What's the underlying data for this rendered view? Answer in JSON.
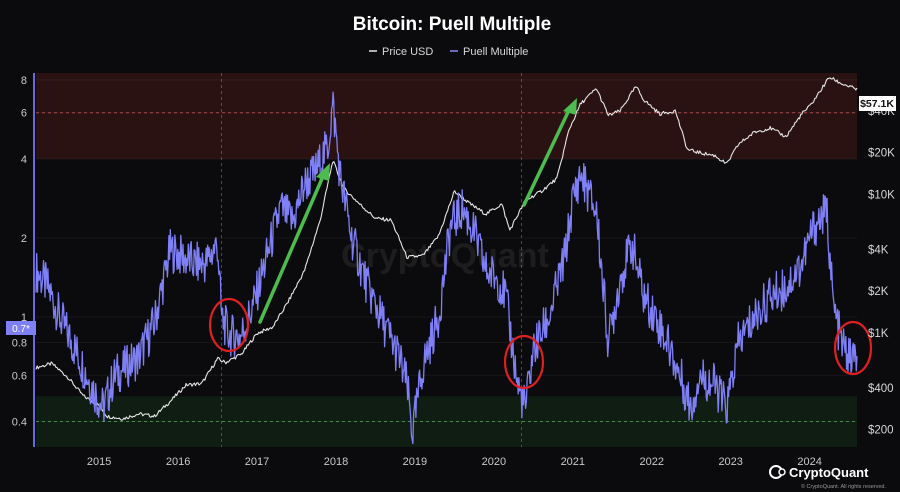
{
  "chart_data": {
    "type": "line",
    "title": "Bitcoin: Puell Multiple",
    "legend": [
      "Price USD",
      "Puell Multiple"
    ],
    "legend_placement": "top-center",
    "x_tick_labels": [
      "2015",
      "2016",
      "2017",
      "2018",
      "2019",
      "2020",
      "2021",
      "2022",
      "2023",
      "2024"
    ],
    "xlim": [
      2014.2,
      2024.6
    ],
    "left_axis": {
      "scale": "log",
      "ticks": [
        "8",
        "6",
        "4",
        "2",
        "1",
        "0.8",
        "0.6",
        "0.4"
      ],
      "tick_values": [
        8,
        6,
        4,
        2,
        1,
        0.8,
        0.6,
        0.4
      ],
      "ylim": [
        0.32,
        8.5
      ]
    },
    "right_axis": {
      "scale": "log",
      "ticks": [
        "$40K",
        "$20K",
        "$10K",
        "$4K",
        "$2K",
        "$1K",
        "$400",
        "$200"
      ],
      "tick_values": [
        40000,
        20000,
        10000,
        4000,
        2000,
        1000,
        400,
        200
      ],
      "ylim": [
        150,
        75000
      ]
    },
    "current_badges": {
      "puell": "0.7*",
      "price": "$57.1K"
    },
    "bands": {
      "red_zone": [
        4,
        8.5
      ],
      "green_zone": [
        0.32,
        0.5
      ],
      "dashed_lines": [
        6,
        0.4
      ]
    },
    "series": [
      {
        "name": "Price USD",
        "color": "#e6e6e6",
        "x": [
          2014.2,
          2014.4,
          2014.6,
          2014.8,
          2015.0,
          2015.1,
          2015.3,
          2015.5,
          2015.7,
          2015.9,
          2016.1,
          2016.3,
          2016.5,
          2016.6,
          2016.8,
          2017.0,
          2017.2,
          2017.4,
          2017.6,
          2017.8,
          2017.96,
          2018.1,
          2018.3,
          2018.5,
          2018.7,
          2018.9,
          2019.1,
          2019.3,
          2019.5,
          2019.7,
          2019.9,
          2020.1,
          2020.2,
          2020.4,
          2020.6,
          2020.8,
          2020.95,
          2021.1,
          2021.3,
          2021.45,
          2021.6,
          2021.8,
          2021.9,
          2022.1,
          2022.3,
          2022.45,
          2022.6,
          2022.8,
          2022.95,
          2023.1,
          2023.3,
          2023.5,
          2023.7,
          2023.9,
          2024.0,
          2024.1,
          2024.25,
          2024.4,
          2024.6
        ],
        "values": [
          560,
          600,
          480,
          350,
          300,
          250,
          240,
          260,
          250,
          320,
          420,
          430,
          650,
          610,
          700,
          990,
          1100,
          1700,
          2800,
          6500,
          17500,
          11000,
          8500,
          6700,
          6500,
          3500,
          3600,
          5000,
          10500,
          8500,
          7200,
          8500,
          5500,
          9000,
          10500,
          13000,
          29000,
          45000,
          58000,
          37000,
          40000,
          60000,
          48000,
          38000,
          40000,
          21000,
          20000,
          19000,
          16500,
          23000,
          28000,
          30000,
          26000,
          38000,
          43000,
          52000,
          70000,
          63000,
          57100
        ]
      },
      {
        "name": "Puell Multiple",
        "color": "#7f7ff6",
        "x": [
          2014.2,
          2014.35,
          2014.5,
          2014.7,
          2014.9,
          2015.05,
          2015.2,
          2015.35,
          2015.5,
          2015.7,
          2015.9,
          2016.05,
          2016.2,
          2016.35,
          2016.5,
          2016.55,
          2016.65,
          2016.8,
          2016.95,
          2017.1,
          2017.3,
          2017.45,
          2017.6,
          2017.75,
          2017.9,
          2017.96,
          2018.05,
          2018.2,
          2018.4,
          2018.6,
          2018.8,
          2018.9,
          2018.97,
          2019.1,
          2019.3,
          2019.45,
          2019.6,
          2019.75,
          2019.9,
          2020.05,
          2020.15,
          2020.3,
          2020.4,
          2020.5,
          2020.7,
          2020.9,
          2021.0,
          2021.1,
          2021.3,
          2021.45,
          2021.6,
          2021.75,
          2021.9,
          2022.05,
          2022.2,
          2022.4,
          2022.5,
          2022.6,
          2022.8,
          2022.95,
          2023.1,
          2023.3,
          2023.5,
          2023.7,
          2023.9,
          2024.05,
          2024.15,
          2024.22,
          2024.3,
          2024.4,
          2024.5,
          2024.6
        ],
        "values": [
          1.5,
          1.3,
          1.0,
          0.75,
          0.55,
          0.45,
          0.6,
          0.65,
          0.7,
          0.95,
          1.8,
          1.7,
          1.6,
          1.6,
          1.9,
          1.0,
          0.85,
          0.85,
          1.1,
          1.6,
          2.6,
          2.3,
          3.2,
          3.6,
          4.5,
          6.5,
          3.5,
          2.0,
          1.3,
          0.95,
          0.7,
          0.55,
          0.36,
          0.65,
          1.0,
          2.2,
          2.6,
          2.1,
          1.5,
          1.4,
          1.2,
          0.55,
          0.45,
          0.75,
          1.0,
          1.7,
          2.8,
          3.5,
          2.5,
          0.8,
          1.4,
          1.9,
          1.2,
          1.0,
          0.8,
          0.55,
          0.45,
          0.6,
          0.55,
          0.45,
          0.8,
          1.0,
          1.2,
          1.3,
          1.6,
          2.2,
          2.4,
          2.5,
          1.1,
          0.8,
          0.7,
          0.7
        ]
      }
    ]
  },
  "watermark": "CryptoQuant",
  "brand": {
    "name": "CryptoQuant",
    "copyright": "© CryptoQuant. All rights reserved."
  }
}
